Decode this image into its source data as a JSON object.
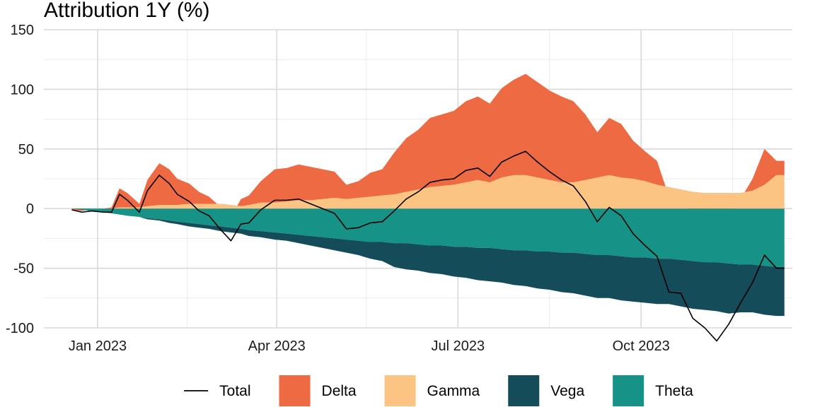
{
  "chart_data": {
    "type": "area",
    "title": "Attribution 1Y (%)",
    "xlabel": "",
    "ylabel": "",
    "ylim": [
      -100,
      150
    ],
    "xlim": [
      "2022-12-05",
      "2023-12-16"
    ],
    "y_ticks": [
      -100,
      -50,
      0,
      50,
      100,
      150
    ],
    "y_tick_labels": [
      "-100",
      "-50",
      "0",
      "50",
      "100",
      "150"
    ],
    "x_ticks": [
      "2023-01-01",
      "2023-04-01",
      "2023-07-01",
      "2023-10-01"
    ],
    "x_tick_labels": [
      "Jan 2023",
      "Apr 2023",
      "Jul 2023",
      "Oct 2023"
    ],
    "x_minor_ticks": [
      "2022-12-01",
      "2023-02-15",
      "2023-05-16",
      "2023-08-16",
      "2023-11-16"
    ],
    "grid": true,
    "legend_position": "bottom",
    "legend": [
      {
        "name": "Total",
        "key": "line"
      },
      {
        "name": "Delta",
        "key": "fill"
      },
      {
        "name": "Gamma",
        "key": "fill"
      },
      {
        "name": "Vega",
        "key": "fill"
      },
      {
        "name": "Theta",
        "key": "fill"
      }
    ],
    "colors": {
      "Total": "#000000",
      "Delta": "#EE6A42",
      "Gamma": "#FCC482",
      "Vega": "#144C5A",
      "Theta": "#169286"
    },
    "x": [
      "2022-12-19",
      "2022-12-24",
      "2022-12-29",
      "2023-01-04",
      "2023-01-08",
      "2023-01-12",
      "2023-01-16",
      "2023-01-22",
      "2023-01-26",
      "2023-02-01",
      "2023-02-06",
      "2023-02-10",
      "2023-02-16",
      "2023-02-21",
      "2023-02-26",
      "2023-03-04",
      "2023-03-09",
      "2023-03-14",
      "2023-03-18",
      "2023-03-24",
      "2023-03-31",
      "2023-04-06",
      "2023-04-12",
      "2023-04-18",
      "2023-04-24",
      "2023-04-30",
      "2023-05-06",
      "2023-05-12",
      "2023-05-18",
      "2023-05-24",
      "2023-05-30",
      "2023-06-05",
      "2023-06-11",
      "2023-06-17",
      "2023-06-23",
      "2023-06-29",
      "2023-07-05",
      "2023-07-11",
      "2023-07-17",
      "2023-07-23",
      "2023-07-29",
      "2023-08-04",
      "2023-08-10",
      "2023-08-16",
      "2023-08-22",
      "2023-08-28",
      "2023-09-03",
      "2023-09-09",
      "2023-09-15",
      "2023-09-21",
      "2023-09-27",
      "2023-10-03",
      "2023-10-09",
      "2023-10-15",
      "2023-10-21",
      "2023-10-27",
      "2023-11-02",
      "2023-11-08",
      "2023-11-14",
      "2023-11-20",
      "2023-11-26",
      "2023-12-02",
      "2023-12-08",
      "2023-12-12"
    ],
    "series": [
      {
        "name": "Delta",
        "values": [
          -1,
          -2,
          0,
          0,
          1,
          16,
          12,
          3,
          22,
          35,
          30,
          22,
          17,
          10,
          6,
          -3,
          -10,
          6,
          8,
          18,
          28,
          28,
          30,
          28,
          25,
          22,
          12,
          14,
          20,
          22,
          35,
          45,
          50,
          58,
          60,
          62,
          68,
          70,
          66,
          75,
          80,
          85,
          80,
          75,
          72,
          68,
          55,
          38,
          48,
          45,
          32,
          25,
          20,
          -8,
          -5,
          -22,
          -28,
          -38,
          -22,
          -5,
          10,
          30,
          12,
          12
        ]
      },
      {
        "name": "Gamma",
        "values": [
          0,
          0,
          0,
          0,
          0,
          1,
          1,
          1,
          2,
          3,
          3,
          3,
          4,
          4,
          4,
          4,
          3,
          2,
          3,
          5,
          5,
          6,
          7,
          7,
          8,
          9,
          8,
          9,
          10,
          11,
          12,
          14,
          16,
          18,
          19,
          20,
          22,
          24,
          22,
          26,
          28,
          28,
          26,
          24,
          22,
          22,
          24,
          26,
          28,
          26,
          25,
          23,
          20,
          18,
          16,
          14,
          13,
          13,
          13,
          13,
          15,
          20,
          28,
          28
        ]
      },
      {
        "name": "Vega",
        "values": [
          0,
          0,
          0,
          0,
          0,
          0,
          0,
          0,
          -1,
          -1,
          -2,
          -2,
          -3,
          -3,
          -3,
          -4,
          -4,
          -4,
          -5,
          -5,
          -6,
          -6,
          -7,
          -8,
          -9,
          -10,
          -11,
          -12,
          -14,
          -16,
          -20,
          -22,
          -22,
          -23,
          -24,
          -25,
          -26,
          -27,
          -28,
          -28,
          -29,
          -30,
          -31,
          -32,
          -33,
          -34,
          -35,
          -36,
          -36,
          -37,
          -37,
          -38,
          -38,
          -38,
          -39,
          -40,
          -40,
          -41,
          -42,
          -40,
          -40,
          -41,
          -41,
          -41
        ]
      },
      {
        "name": "Theta",
        "values": [
          0,
          -1,
          -2,
          -3,
          -4,
          -5,
          -6,
          -7,
          -8,
          -9,
          -10,
          -11,
          -12,
          -13,
          -14,
          -15,
          -16,
          -17,
          -18,
          -19,
          -20,
          -21,
          -22,
          -23,
          -24,
          -25,
          -26,
          -27,
          -28,
          -28,
          -29,
          -29,
          -30,
          -31,
          -31,
          -32,
          -32,
          -33,
          -33,
          -34,
          -35,
          -35,
          -36,
          -36,
          -37,
          -37,
          -38,
          -39,
          -39,
          -40,
          -41,
          -41,
          -42,
          -42,
          -43,
          -44,
          -45,
          -45,
          -46,
          -47,
          -47,
          -48,
          -49,
          -49
        ]
      },
      {
        "name": "Total",
        "values": [
          -1,
          -3,
          -2,
          -3,
          -3,
          12,
          7,
          -3,
          15,
          28,
          21,
          12,
          6,
          -2,
          -6,
          -18,
          -27,
          -13,
          -12,
          -1,
          7,
          7,
          8,
          4,
          0,
          -4,
          -17,
          -16,
          -12,
          -11,
          -2,
          8,
          14,
          22,
          24,
          25,
          32,
          34,
          27,
          39,
          44,
          48,
          39,
          31,
          24,
          19,
          6,
          -11,
          1,
          -6,
          -21,
          -31,
          -40,
          -70,
          -71,
          -92,
          -100,
          -111,
          -97,
          -79,
          -62,
          -39,
          -50,
          -50
        ]
      }
    ]
  }
}
